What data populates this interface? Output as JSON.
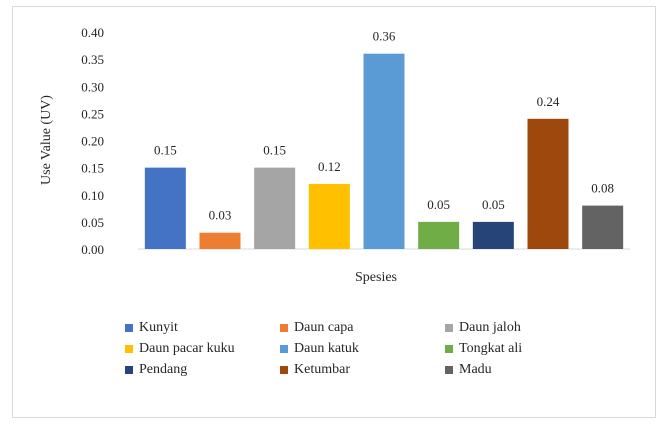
{
  "chart_data": {
    "type": "bar",
    "title": "",
    "xlabel": "Spesies",
    "ylabel": "Use Value (UV)",
    "ylim": [
      0,
      0.4
    ],
    "yticks": [
      "0.00",
      "0.05",
      "0.10",
      "0.15",
      "0.20",
      "0.25",
      "0.30",
      "0.35",
      "0.40"
    ],
    "grid": false,
    "legend_position": "bottom",
    "categories": [
      "Kunyit",
      "Daun capa",
      "Daun jaloh",
      "Daun pacar kuku",
      "Daun katuk",
      "Tongkat ali",
      "Pendang",
      "Ketumbar",
      "Madu"
    ],
    "values": [
      0.15,
      0.03,
      0.15,
      0.12,
      0.36,
      0.05,
      0.05,
      0.24,
      0.08
    ],
    "data_labels": [
      "0.15",
      "0.03",
      "0.15",
      "0.12",
      "0.36",
      "0.05",
      "0.05",
      "0.24",
      "0.08"
    ],
    "colors": [
      "#4472c4",
      "#ed7d31",
      "#a5a5a5",
      "#ffc000",
      "#5b9bd5",
      "#70ad47",
      "#264478",
      "#9e480e",
      "#636363"
    ]
  }
}
